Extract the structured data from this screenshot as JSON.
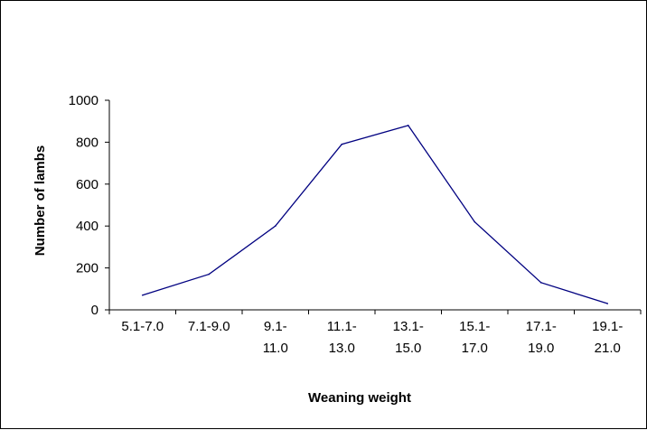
{
  "chart_data": {
    "type": "line",
    "title": "",
    "xlabel": "Weaning weight",
    "ylabel": "Number of lambs",
    "categories": [
      "5.1-7.0",
      "7.1-9.0",
      "9.1-11.0",
      "11.1-13.0",
      "13.1-15.0",
      "15.1-17.0",
      "17.1-19.0",
      "19.1-21.0"
    ],
    "category_label_lines": [
      [
        "5.1-7.0"
      ],
      [
        "7.1-9.0"
      ],
      [
        "9.1-",
        "11.0"
      ],
      [
        "11.1-",
        "13.0"
      ],
      [
        "13.1-",
        "15.0"
      ],
      [
        "15.1-",
        "17.0"
      ],
      [
        "17.1-",
        "19.0"
      ],
      [
        "19.1-",
        "21.0"
      ]
    ],
    "series": [
      {
        "values": [
          70,
          170,
          400,
          790,
          880,
          420,
          130,
          30
        ]
      }
    ],
    "ylim": [
      0,
      1000
    ],
    "yticks": [
      0,
      200,
      400,
      600,
      800,
      1000
    ],
    "grid": false,
    "legend": "none",
    "line_color": "#000080"
  }
}
